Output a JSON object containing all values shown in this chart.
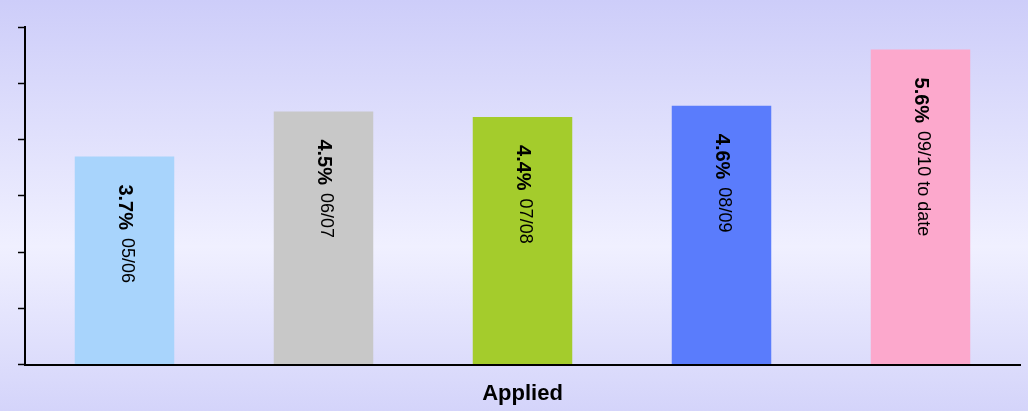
{
  "chart_data": {
    "type": "bar",
    "xlabel": "Applied",
    "categories": [
      "05/06",
      "06/07",
      "07/08",
      "08/09",
      "09/10 to date"
    ],
    "values": [
      3.7,
      4.5,
      4.4,
      4.6,
      5.6
    ],
    "colors": [
      "#a8d4fc",
      "#c8c8c8",
      "#a4cc2c",
      "#5a7cfc",
      "#fca8cc"
    ],
    "value_labels": [
      "3.7%",
      "4.5%",
      "4.4%",
      "4.6%",
      "5.6%"
    ],
    "ylim": [
      0,
      6
    ],
    "yticks": [
      {
        "value": 0,
        "label": null
      },
      {
        "value": 1,
        "label": null
      },
      {
        "value": 2,
        "label": null
      },
      {
        "value": 3,
        "label": null
      },
      {
        "value": 4,
        "label": null
      },
      {
        "value": 5,
        "label": null
      },
      {
        "value": 6,
        "label": null
      }
    ],
    "grid": false,
    "legend": false
  }
}
